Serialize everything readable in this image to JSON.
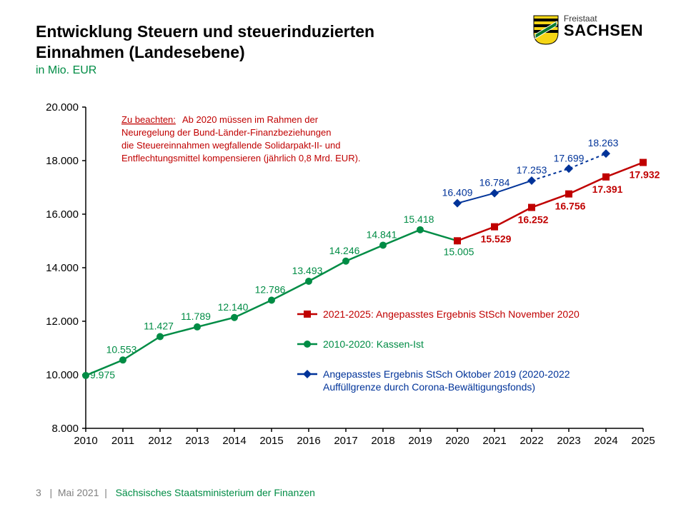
{
  "header": {
    "title_line1": "Entwicklung Steuern und steuerinduzierten",
    "title_line2": "Einnahmen (Landesebene)",
    "subtitle": "in Mio. EUR"
  },
  "logo": {
    "line1": "Freistaat",
    "line2": "SACHSEN"
  },
  "chart": {
    "type": "line",
    "background_color": "#ffffff",
    "axis_color": "#000000",
    "ylim": [
      8000,
      20000
    ],
    "ytick_step": 2000,
    "yticks": [
      "8.000",
      "10.000",
      "12.000",
      "14.000",
      "16.000",
      "18.000",
      "20.000"
    ],
    "xcategories": [
      "2010",
      "2011",
      "2012",
      "2013",
      "2014",
      "2015",
      "2016",
      "2017",
      "2018",
      "2019",
      "2020",
      "2021",
      "2022",
      "2023",
      "2024",
      "2025"
    ],
    "series": {
      "green": {
        "name": "kassen-ist",
        "color": "#008c45",
        "label_color": "#008c45",
        "line_width": 2.5,
        "marker": "circle",
        "marker_size": 5,
        "x": [
          2010,
          2011,
          2012,
          2013,
          2014,
          2015,
          2016,
          2017,
          2018,
          2019,
          2020
        ],
        "y": [
          9975,
          10553,
          11427,
          11789,
          12140,
          12786,
          13493,
          14246,
          14841,
          15418,
          15005
        ],
        "labels": [
          "9.975",
          "10.553",
          "11.427",
          "11.789",
          "12.140",
          "12.786",
          "13.493",
          "14.246",
          "14.841",
          "15.418",
          "15.005"
        ]
      },
      "red": {
        "name": "stsch-nov-2020",
        "color": "#c00000",
        "label_color": "#c00000",
        "line_width": 2.5,
        "marker": "square",
        "marker_size": 5,
        "x": [
          2020,
          2021,
          2022,
          2023,
          2024,
          2025
        ],
        "y": [
          15005,
          15529,
          16252,
          16756,
          17391,
          17932
        ],
        "labels": [
          "",
          "15.529",
          "16.252",
          "16.756",
          "17.391",
          "17.932"
        ],
        "label_bold": true
      },
      "blue": {
        "name": "stsch-okt-2019",
        "color": "#003399",
        "label_color": "#003399",
        "line_width": 2,
        "solid_until_index": 2,
        "dash_after": "4,4",
        "marker": "diamond",
        "marker_size": 5,
        "x": [
          2020,
          2021,
          2022,
          2023,
          2024
        ],
        "y": [
          16409,
          16784,
          17253,
          17699,
          18263
        ],
        "labels": [
          "16.409",
          "16.784",
          "17.253",
          "17.699",
          "18.263"
        ]
      }
    },
    "note": {
      "title": "Zu beachten:",
      "lines": [
        "Ab 2020 müssen im Rahmen der",
        "Neuregelung der Bund-Länder-Finanzbeziehungen",
        "die Steuereinnahmen wegfallende Solidarpakt-II- und",
        "Entflechtungsmittel kompensieren (jährlich 0,8 Mrd. EUR)."
      ]
    },
    "legend": [
      {
        "key": "red",
        "text": "2021-2025: Angepasstes Ergebnis StSch November 2020",
        "color": "#c00000",
        "marker": "square"
      },
      {
        "key": "green",
        "text": "2010-2020: Kassen-Ist",
        "color": "#008c45",
        "marker": "circle"
      },
      {
        "key": "blue",
        "text": "Angepasstes Ergebnis StSch Oktober 2019 (2020-2022",
        "text2": "Auffüllgrenze durch Corona-Bewältigungsfonds)",
        "color": "#003399",
        "marker": "diamond"
      }
    ]
  },
  "footer": {
    "page_num": "3",
    "date": "Mai 2021",
    "ministry": "Sächsisches Staatsministerium der Finanzen"
  }
}
